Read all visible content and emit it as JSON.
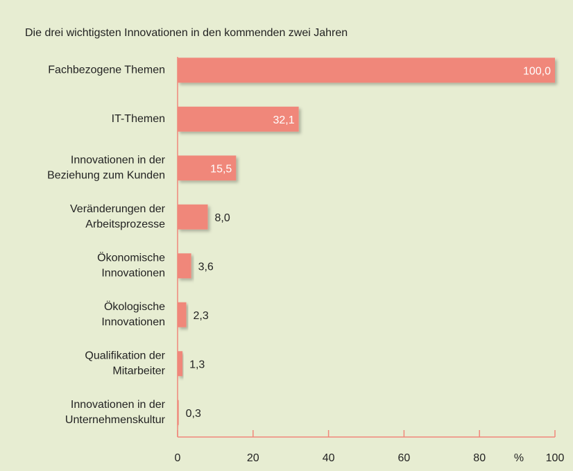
{
  "chart_data": {
    "type": "barh",
    "title": "Die drei wichtigsten Innovationen in den kommenden zwei Jahren",
    "categories": [
      [
        "Fachbezogene Themen"
      ],
      [
        "IT-Themen"
      ],
      [
        "Innovationen in der",
        "Beziehung zum Kunden"
      ],
      [
        "Veränderungen der",
        "Arbeitsprozesse"
      ],
      [
        "Ökonomische",
        "Innovationen"
      ],
      [
        "Ökologische",
        "Innovationen"
      ],
      [
        "Qualifikation der",
        "Mitarbeiter"
      ],
      [
        "Innovationen in der",
        "Unternehmenskultur"
      ]
    ],
    "values": [
      100.0,
      32.1,
      15.5,
      8.0,
      3.6,
      2.3,
      1.3,
      0.3
    ],
    "value_labels": [
      "100,0",
      "32,1",
      "15,5",
      "8,0",
      "3,6",
      "2,3",
      "1,3",
      "0,3"
    ],
    "color": "#f0877a",
    "xlabel": "%",
    "xlim": [
      0,
      100
    ],
    "xticks": [
      0,
      20,
      40,
      60,
      80,
      100
    ]
  }
}
